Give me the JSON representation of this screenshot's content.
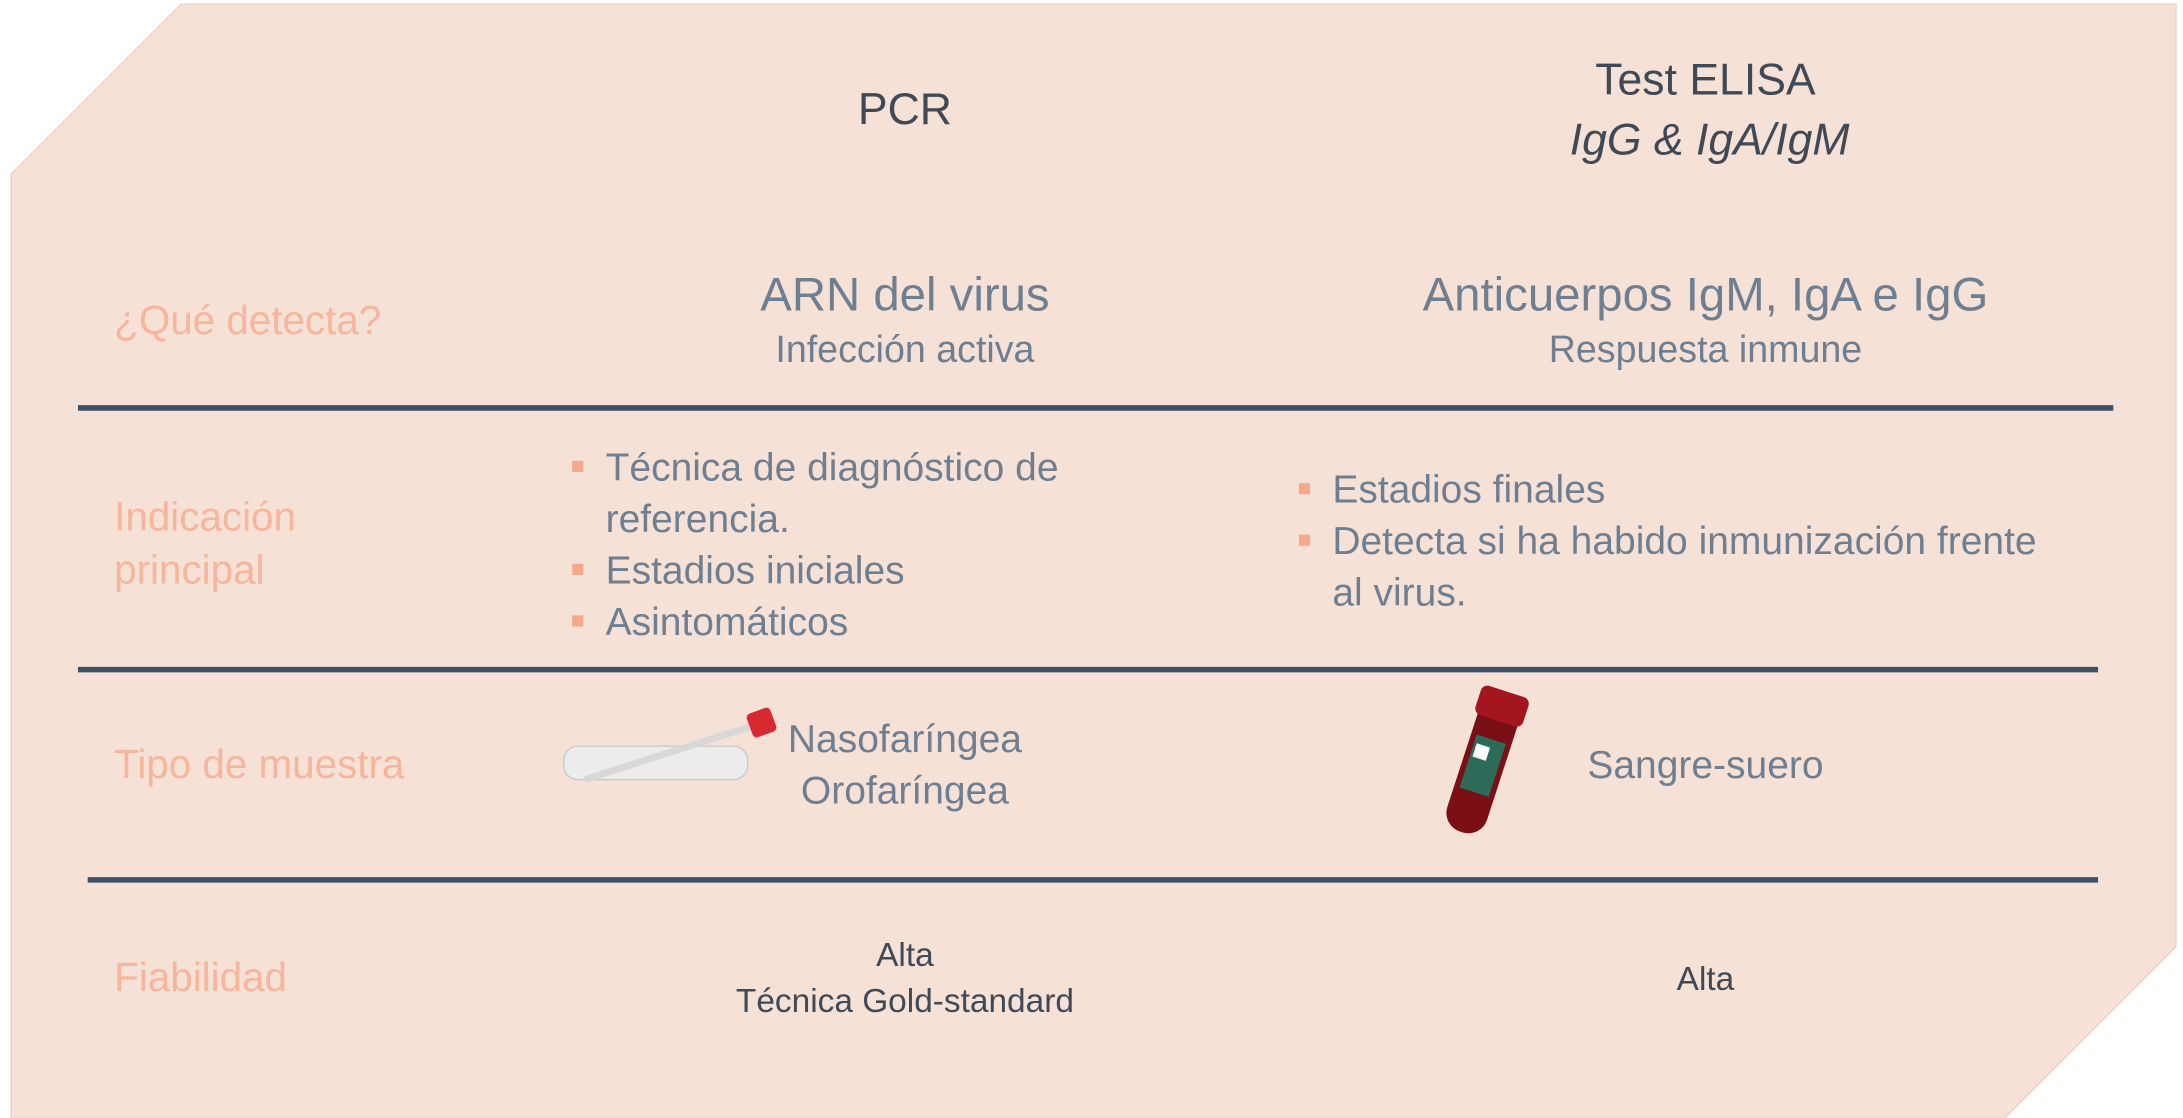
{
  "header": {
    "columns": [
      {
        "title": "PCR"
      },
      {
        "title": "Test ELISA",
        "subtitle": "IgG & IgA/IgM"
      }
    ]
  },
  "rows": [
    {
      "label": "¿Qué detecta?",
      "cells": [
        {
          "main": "ARN del virus",
          "sub": "Infección activa"
        },
        {
          "main": "Anticuerpos IgM, IgA e IgG",
          "sub": "Respuesta inmune"
        }
      ]
    },
    {
      "label": "Indicación principal",
      "cells": [
        {
          "bullets": [
            "Técnica de diagnóstico de referencia.",
            "Estadios iniciales",
            "Asintomáticos"
          ]
        },
        {
          "bullets": [
            "Estadios finales",
            "Detecta si ha habido inmunización frente al virus."
          ]
        }
      ]
    },
    {
      "label": "Tipo de muestra",
      "cells": [
        {
          "lines": [
            "Nasofaríngea",
            "Orofaríngea"
          ]
        },
        {
          "lines": [
            "Sangre-suero"
          ]
        }
      ]
    },
    {
      "label": "Fiabilidad",
      "cells": [
        {
          "lines": [
            "Alta",
            "Técnica Gold-standard"
          ]
        },
        {
          "lines": [
            "Alta"
          ]
        }
      ]
    }
  ]
}
